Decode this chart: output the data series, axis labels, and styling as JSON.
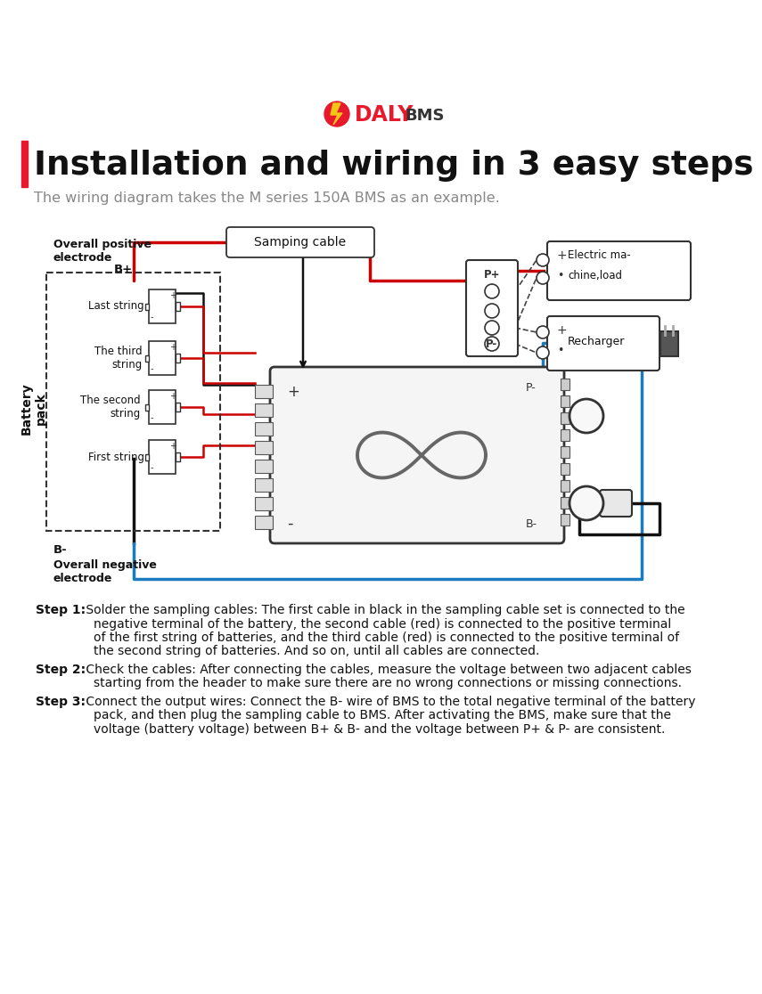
{
  "background_color": "#ffffff",
  "logo_text_daly": "DALY",
  "logo_text_bms": "BMS",
  "logo_color_daly": "#e8192c",
  "logo_color_bms": "#333333",
  "title": "Installation and wiring in 3 easy steps",
  "subtitle": "The wiring diagram takes the M series 150A BMS as an example.",
  "title_color": "#111111",
  "subtitle_color": "#888888",
  "accent_bar_color": "#e8192c",
  "wire_red": "#cc0000",
  "wire_black": "#111111",
  "wire_blue": "#1a7bbf",
  "step1_bold": "Step 1:",
  "step1_rest": " Solder the sampling cables: The first cable in black in the sampling cable set is connected to the",
  "step1_line2": "negative terminal of the battery, the second cable (red) is connected to the positive terminal",
  "step1_line3": "of the first string of batteries, and the third cable (red) is connected to the positive terminal of",
  "step1_line4": "the second string of batteries. And so on, until all cables are connected.",
  "step2_bold": "Step 2:",
  "step2_rest": " Check the cables: After connecting the cables, measure the voltage between two adjacent cables",
  "step2_line2": "starting from the header to make sure there are no wrong connections or missing connections.",
  "step3_bold": "Step 3:",
  "step3_rest": " Connect the output wires: Connect the B- wire of BMS to the total negative terminal of the battery",
  "step3_line2": "pack, and then plug the sampling cable to BMS. After activating the BMS, make sure that the",
  "step3_line3": "voltage (battery voltage) between B+ & B- and the voltage between P+ & P- are consistent.",
  "fig_width": 8.0,
  "fig_height": 10.96
}
